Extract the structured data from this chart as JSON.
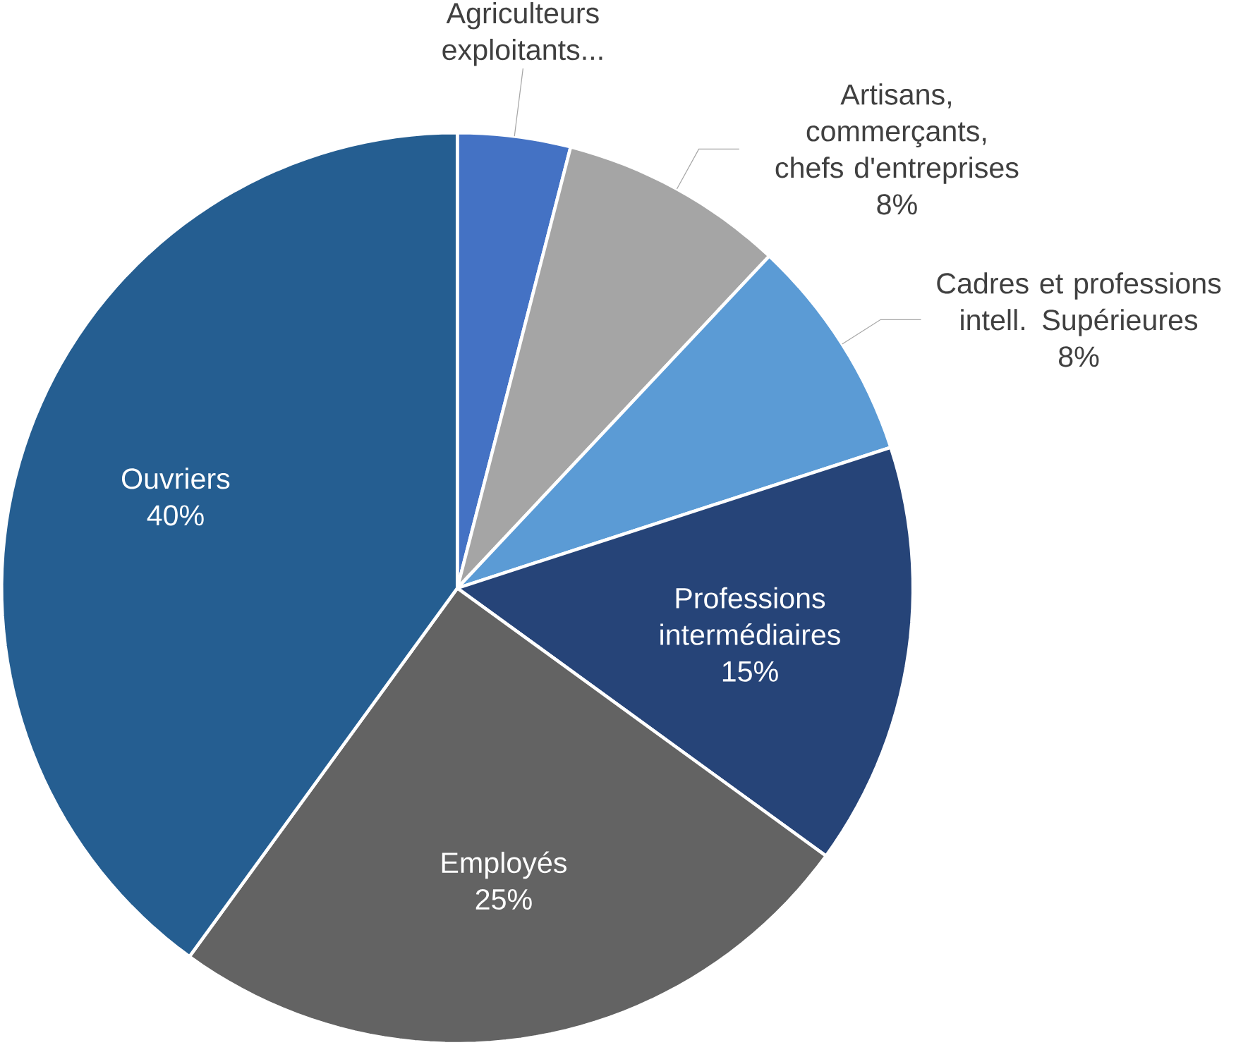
{
  "chart_data": {
    "type": "pie",
    "categories": [
      "Agriculteurs exploitants...",
      "Artisans, commerçants, chefs d'entreprises",
      "Cadres et professions intell. Supérieures",
      "Professions intermédiaires",
      "Employés",
      "Ouvriers"
    ],
    "values": [
      4,
      8,
      8,
      15,
      25,
      40
    ],
    "value_labels": [
      null,
      "8%",
      "8%",
      "15%",
      "25%",
      "40%"
    ],
    "colors": [
      "#4472c4",
      "#a5a5a5",
      "#5b9bd5",
      "#264478",
      "#636363",
      "#255e91"
    ]
  }
}
